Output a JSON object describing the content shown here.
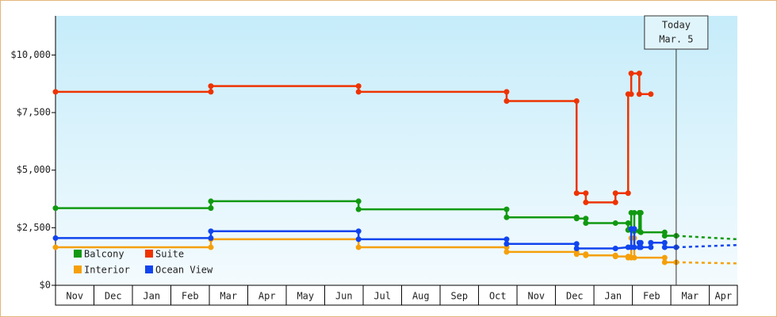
{
  "chart_data": {
    "type": "line",
    "categories": [
      "Nov",
      "Dec",
      "Jan",
      "Feb",
      "Mar",
      "Apr",
      "May",
      "Jun",
      "Jul",
      "Aug",
      "Sep",
      "Oct",
      "Nov",
      "Dec",
      "Jan",
      "Feb",
      "Mar",
      "Apr"
    ],
    "xlim": [
      0,
      17.73
    ],
    "ylim": [
      0,
      11700
    ],
    "yticks": [
      {
        "value": 0,
        "label": "$0"
      },
      {
        "value": 2500,
        "label": "$2,500"
      },
      {
        "value": 5000,
        "label": "$5,000"
      },
      {
        "value": 7500,
        "label": "$7,500"
      },
      {
        "value": 10000,
        "label": "$10,000"
      }
    ],
    "annotation": {
      "lines": [
        "Today",
        "Mar. 5"
      ],
      "x": 16.14
    },
    "legend": "lower left",
    "series": [
      {
        "name": "Balcony",
        "color": "#119911",
        "x": [
          0,
          4.04,
          4.04,
          7.88,
          7.88,
          11.73,
          11.73,
          13.55,
          13.55,
          13.79,
          13.79,
          14.56,
          14.89,
          14.89,
          14.97,
          14.97,
          15.05,
          15.05,
          15.18,
          15.18,
          15.22,
          15.22,
          15.84,
          15.84,
          16.14
        ],
        "values": [
          3350,
          3350,
          3650,
          3650,
          3300,
          3300,
          2950,
          2950,
          2900,
          2900,
          2700,
          2700,
          2700,
          2400,
          2400,
          3150,
          3150,
          2350,
          2350,
          3150,
          3150,
          2300,
          2300,
          2150,
          2150
        ],
        "projection_x": [
          16.14,
          17.73
        ],
        "projection_values": [
          2150,
          2000
        ]
      },
      {
        "name": "Suite",
        "color": "#ee3300",
        "x": [
          0,
          4.04,
          4.04,
          7.88,
          7.88,
          11.73,
          11.73,
          13.55,
          13.55,
          13.79,
          13.79,
          14.56,
          14.56,
          14.89,
          14.89,
          14.97,
          14.97,
          15.18,
          15.18,
          15.48
        ],
        "values": [
          8400,
          8400,
          8650,
          8650,
          8400,
          8400,
          8000,
          8000,
          4000,
          4000,
          3600,
          3600,
          4000,
          4000,
          8300,
          8300,
          9200,
          9200,
          8300,
          8300
        ]
      },
      {
        "name": "Interior",
        "color": "#f5a00a",
        "x": [
          0,
          4.04,
          4.04,
          7.88,
          7.88,
          11.73,
          11.73,
          13.55,
          13.55,
          13.79,
          13.79,
          14.56,
          14.56,
          14.89,
          14.89,
          14.97,
          14.97,
          15.05,
          15.05,
          15.84,
          15.84,
          16.14
        ],
        "values": [
          1650,
          1650,
          2000,
          2000,
          1650,
          1650,
          1450,
          1450,
          1350,
          1350,
          1300,
          1300,
          1250,
          1250,
          1200,
          1200,
          2050,
          2050,
          1200,
          1200,
          1000,
          1000
        ],
        "projection_x": [
          16.14,
          17.73
        ],
        "projection_values": [
          1000,
          950
        ]
      },
      {
        "name": "Ocean View",
        "color": "#1144ee",
        "x": [
          0,
          4.04,
          4.04,
          7.88,
          7.88,
          11.73,
          11.73,
          13.55,
          13.55,
          14.56,
          14.89,
          14.97,
          14.97,
          15.05,
          15.05,
          15.18,
          15.18,
          15.22,
          15.22,
          15.48,
          15.48,
          15.84,
          15.84,
          16.14
        ],
        "values": [
          2050,
          2050,
          2350,
          2350,
          2000,
          2000,
          1800,
          1800,
          1600,
          1600,
          1650,
          1650,
          2450,
          2450,
          1650,
          1650,
          1850,
          1850,
          1650,
          1650,
          1850,
          1850,
          1650,
          1650
        ],
        "projection_x": [
          16.14,
          17.73
        ],
        "projection_values": [
          1650,
          1750
        ]
      }
    ]
  }
}
